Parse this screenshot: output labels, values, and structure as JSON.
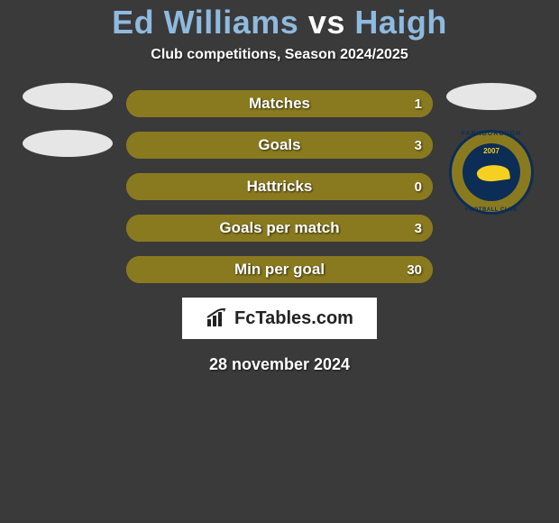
{
  "background_color": "#3a3a3a",
  "title": {
    "player1": "Ed Williams",
    "vs": "vs",
    "player2": "Haigh",
    "player_color": "#8fbadf",
    "vs_color": "#ffffff",
    "fontsize": 36
  },
  "subtitle": {
    "text": "Club competitions, Season 2024/2025",
    "color": "#ffffff",
    "fontsize": 16
  },
  "left_emblems": {
    "ellipse_color": "#e6e6e6",
    "ellipses": 2
  },
  "right_emblems": {
    "ellipse_color": "#e6e6e6",
    "crest": {
      "outer_color": "#8a7a1f",
      "border_color": "#0c2d56",
      "inner_color": "#0c2d56",
      "accent_color": "#f5d020",
      "top_text": "FARNBOROUGH",
      "year": "2007",
      "bottom_text": "FOOTBALL CLUB"
    }
  },
  "bars": {
    "track_color": "#8a7a1f",
    "left_color": "#8a7a1f",
    "right_color": "#8a7a1f",
    "label_color": "#ffffff",
    "height": 30,
    "radius": 15,
    "rows": [
      {
        "label": "Matches",
        "left_value": "",
        "right_value": "1",
        "left_pct": 50,
        "right_pct": 50
      },
      {
        "label": "Goals",
        "left_value": "",
        "right_value": "3",
        "left_pct": 50,
        "right_pct": 50
      },
      {
        "label": "Hattricks",
        "left_value": "",
        "right_value": "0",
        "left_pct": 50,
        "right_pct": 50
      },
      {
        "label": "Goals per match",
        "left_value": "",
        "right_value": "3",
        "left_pct": 50,
        "right_pct": 50
      },
      {
        "label": "Min per goal",
        "left_value": "",
        "right_value": "30",
        "left_pct": 50,
        "right_pct": 50
      }
    ]
  },
  "footer": {
    "box_bg": "#ffffff",
    "brand_text": "FcTables.com",
    "brand_color": "#222222",
    "icon_color": "#222222"
  },
  "date": {
    "text": "28 november 2024",
    "color": "#ffffff",
    "fontsize": 18
  }
}
